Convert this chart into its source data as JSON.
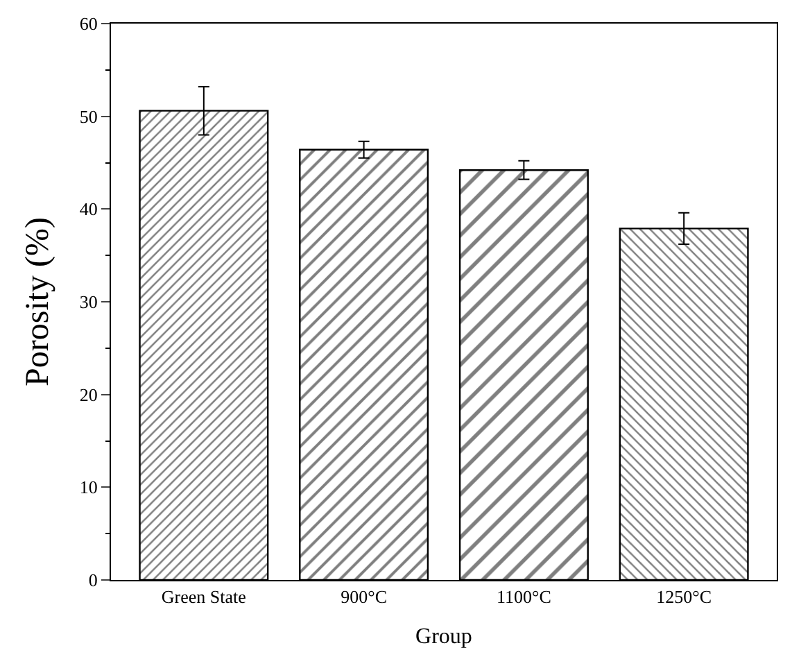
{
  "chart_data": {
    "type": "bar",
    "xlabel": "Group",
    "ylabel": "Porosity (%)",
    "categories": [
      "Green State",
      "900°C",
      "1100°C",
      "1250°C"
    ],
    "values": [
      50.6,
      46.4,
      44.2,
      37.9
    ],
    "errors": [
      2.6,
      0.9,
      1.0,
      1.7
    ],
    "color": "#000000",
    "ylim": [
      0,
      60
    ],
    "yticks": [
      0,
      10,
      20,
      30,
      40,
      50,
      60
    ],
    "legend": false
  }
}
